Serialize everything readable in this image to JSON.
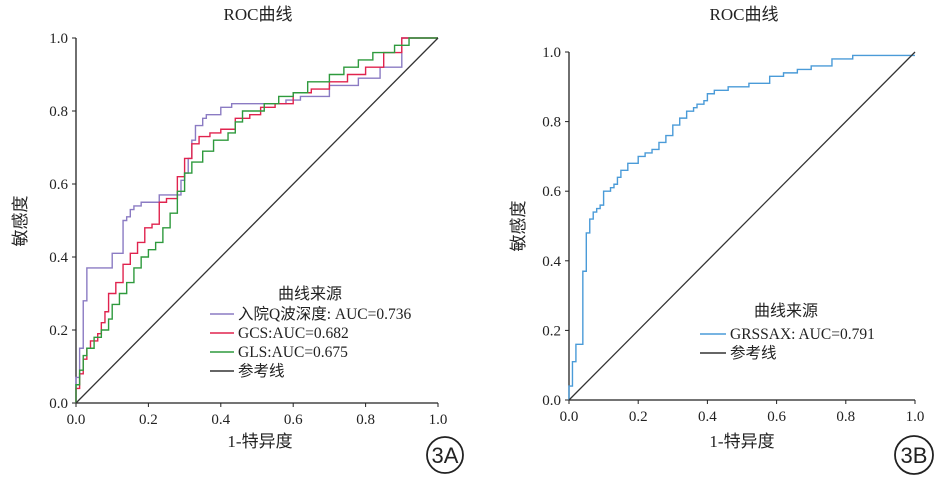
{
  "chart_data": [
    {
      "type": "line",
      "panel": "3A",
      "title": "ROC曲线",
      "xlabel": "1-特异度",
      "ylabel": "敏感度",
      "xlim": [
        0,
        1
      ],
      "ylim": [
        0,
        1
      ],
      "xticks": [
        "0.0",
        "0.2",
        "0.4",
        "0.6",
        "0.8",
        "1.0"
      ],
      "yticks": [
        "0.0",
        "0.2",
        "0.4",
        "0.6",
        "0.8",
        "1.0"
      ],
      "grid": false,
      "legend": {
        "title": "曲线来源",
        "position": "bottom-right",
        "entries": [
          "入院Q波深度: AUC=0.736",
          "GCS:AUC=0.682",
          "GLS:AUC=0.675",
          "参考线"
        ]
      },
      "series": [
        {
          "name": "入院Q波深度: AUC=0.736",
          "color": "#8b7bc3",
          "x": [
            0,
            0.01,
            0.02,
            0.02,
            0.03,
            0.03,
            0.1,
            0.13,
            0.13,
            0.14,
            0.15,
            0.16,
            0.18,
            0.23,
            0.24,
            0.29,
            0.3,
            0.31,
            0.32,
            0.33,
            0.35,
            0.36,
            0.4,
            0.43,
            0.46,
            0.58,
            0.62,
            0.7,
            0.78,
            0.84,
            0.9,
            1.0
          ],
          "y": [
            0,
            0.07,
            0.15,
            0.24,
            0.28,
            0.34,
            0.37,
            0.41,
            0.46,
            0.5,
            0.51,
            0.53,
            0.54,
            0.55,
            0.57,
            0.57,
            0.61,
            0.63,
            0.67,
            0.72,
            0.76,
            0.78,
            0.79,
            0.81,
            0.82,
            0.82,
            0.83,
            0.84,
            0.87,
            0.89,
            0.92,
            1.0
          ]
        },
        {
          "name": "GCS:AUC=0.682",
          "color": "#e0234e",
          "x": [
            0,
            0.01,
            0.02,
            0.03,
            0.04,
            0.06,
            0.07,
            0.08,
            0.09,
            0.11,
            0.13,
            0.15,
            0.17,
            0.19,
            0.21,
            0.23,
            0.25,
            0.28,
            0.3,
            0.32,
            0.34,
            0.37,
            0.4,
            0.44,
            0.48,
            0.51,
            0.55,
            0.6,
            0.65,
            0.7,
            0.75,
            0.8,
            0.85,
            0.9,
            1.0
          ],
          "y": [
            0,
            0.04,
            0.08,
            0.12,
            0.15,
            0.17,
            0.19,
            0.22,
            0.25,
            0.3,
            0.33,
            0.38,
            0.41,
            0.44,
            0.48,
            0.49,
            0.55,
            0.56,
            0.62,
            0.67,
            0.71,
            0.73,
            0.74,
            0.75,
            0.78,
            0.79,
            0.81,
            0.82,
            0.85,
            0.86,
            0.88,
            0.9,
            0.92,
            0.96,
            1.0
          ]
        },
        {
          "name": "GLS:AUC=0.675",
          "color": "#2e9a3d",
          "x": [
            0,
            0.01,
            0.02,
            0.03,
            0.05,
            0.07,
            0.09,
            0.1,
            0.12,
            0.14,
            0.16,
            0.18,
            0.2,
            0.22,
            0.24,
            0.26,
            0.28,
            0.3,
            0.32,
            0.35,
            0.38,
            0.42,
            0.44,
            0.46,
            0.52,
            0.56,
            0.6,
            0.64,
            0.7,
            0.74,
            0.78,
            0.82,
            0.88,
            0.92,
            1.0
          ],
          "y": [
            0,
            0.05,
            0.09,
            0.13,
            0.15,
            0.18,
            0.2,
            0.23,
            0.27,
            0.3,
            0.33,
            0.37,
            0.4,
            0.42,
            0.44,
            0.48,
            0.52,
            0.58,
            0.63,
            0.66,
            0.69,
            0.72,
            0.74,
            0.77,
            0.8,
            0.82,
            0.84,
            0.85,
            0.88,
            0.9,
            0.92,
            0.94,
            0.96,
            0.98,
            1.0
          ]
        },
        {
          "name": "参考线",
          "color": "#333333",
          "x": [
            0,
            1
          ],
          "y": [
            0,
            1
          ]
        }
      ]
    },
    {
      "type": "line",
      "panel": "3B",
      "title": "ROC曲线",
      "xlabel": "1-特异度",
      "ylabel": "敏感度",
      "xlim": [
        0,
        1
      ],
      "ylim": [
        0,
        1
      ],
      "xticks": [
        "0.0",
        "0.2",
        "0.4",
        "0.6",
        "0.8",
        "1.0"
      ],
      "yticks": [
        "0.0",
        "0.2",
        "0.4",
        "0.6",
        "0.8",
        "1.0"
      ],
      "grid": false,
      "legend": {
        "title": "曲线来源",
        "position": "bottom-right",
        "entries": [
          "GRSSAX: AUC=0.791",
          "参考线"
        ]
      },
      "series": [
        {
          "name": "GRSSAX: AUC=0.791",
          "color": "#4a9bd8",
          "x": [
            0,
            0.01,
            0.02,
            0.04,
            0.05,
            0.06,
            0.07,
            0.08,
            0.09,
            0.1,
            0.12,
            0.13,
            0.14,
            0.15,
            0.17,
            0.2,
            0.22,
            0.24,
            0.26,
            0.28,
            0.3,
            0.32,
            0.34,
            0.36,
            0.37,
            0.39,
            0.4,
            0.42,
            0.46,
            0.52,
            0.58,
            0.62,
            0.66,
            0.7,
            0.76,
            0.82,
            1.0
          ],
          "y": [
            0,
            0.04,
            0.11,
            0.16,
            0.37,
            0.48,
            0.52,
            0.54,
            0.55,
            0.56,
            0.6,
            0.61,
            0.62,
            0.64,
            0.66,
            0.68,
            0.7,
            0.71,
            0.72,
            0.74,
            0.76,
            0.79,
            0.81,
            0.83,
            0.84,
            0.85,
            0.86,
            0.88,
            0.89,
            0.9,
            0.91,
            0.93,
            0.94,
            0.95,
            0.96,
            0.98,
            0.99
          ]
        },
        {
          "name": "参考线",
          "color": "#333333",
          "x": [
            0,
            1
          ],
          "y": [
            0,
            1
          ]
        }
      ]
    }
  ],
  "badges": [
    "3A",
    "3B"
  ]
}
